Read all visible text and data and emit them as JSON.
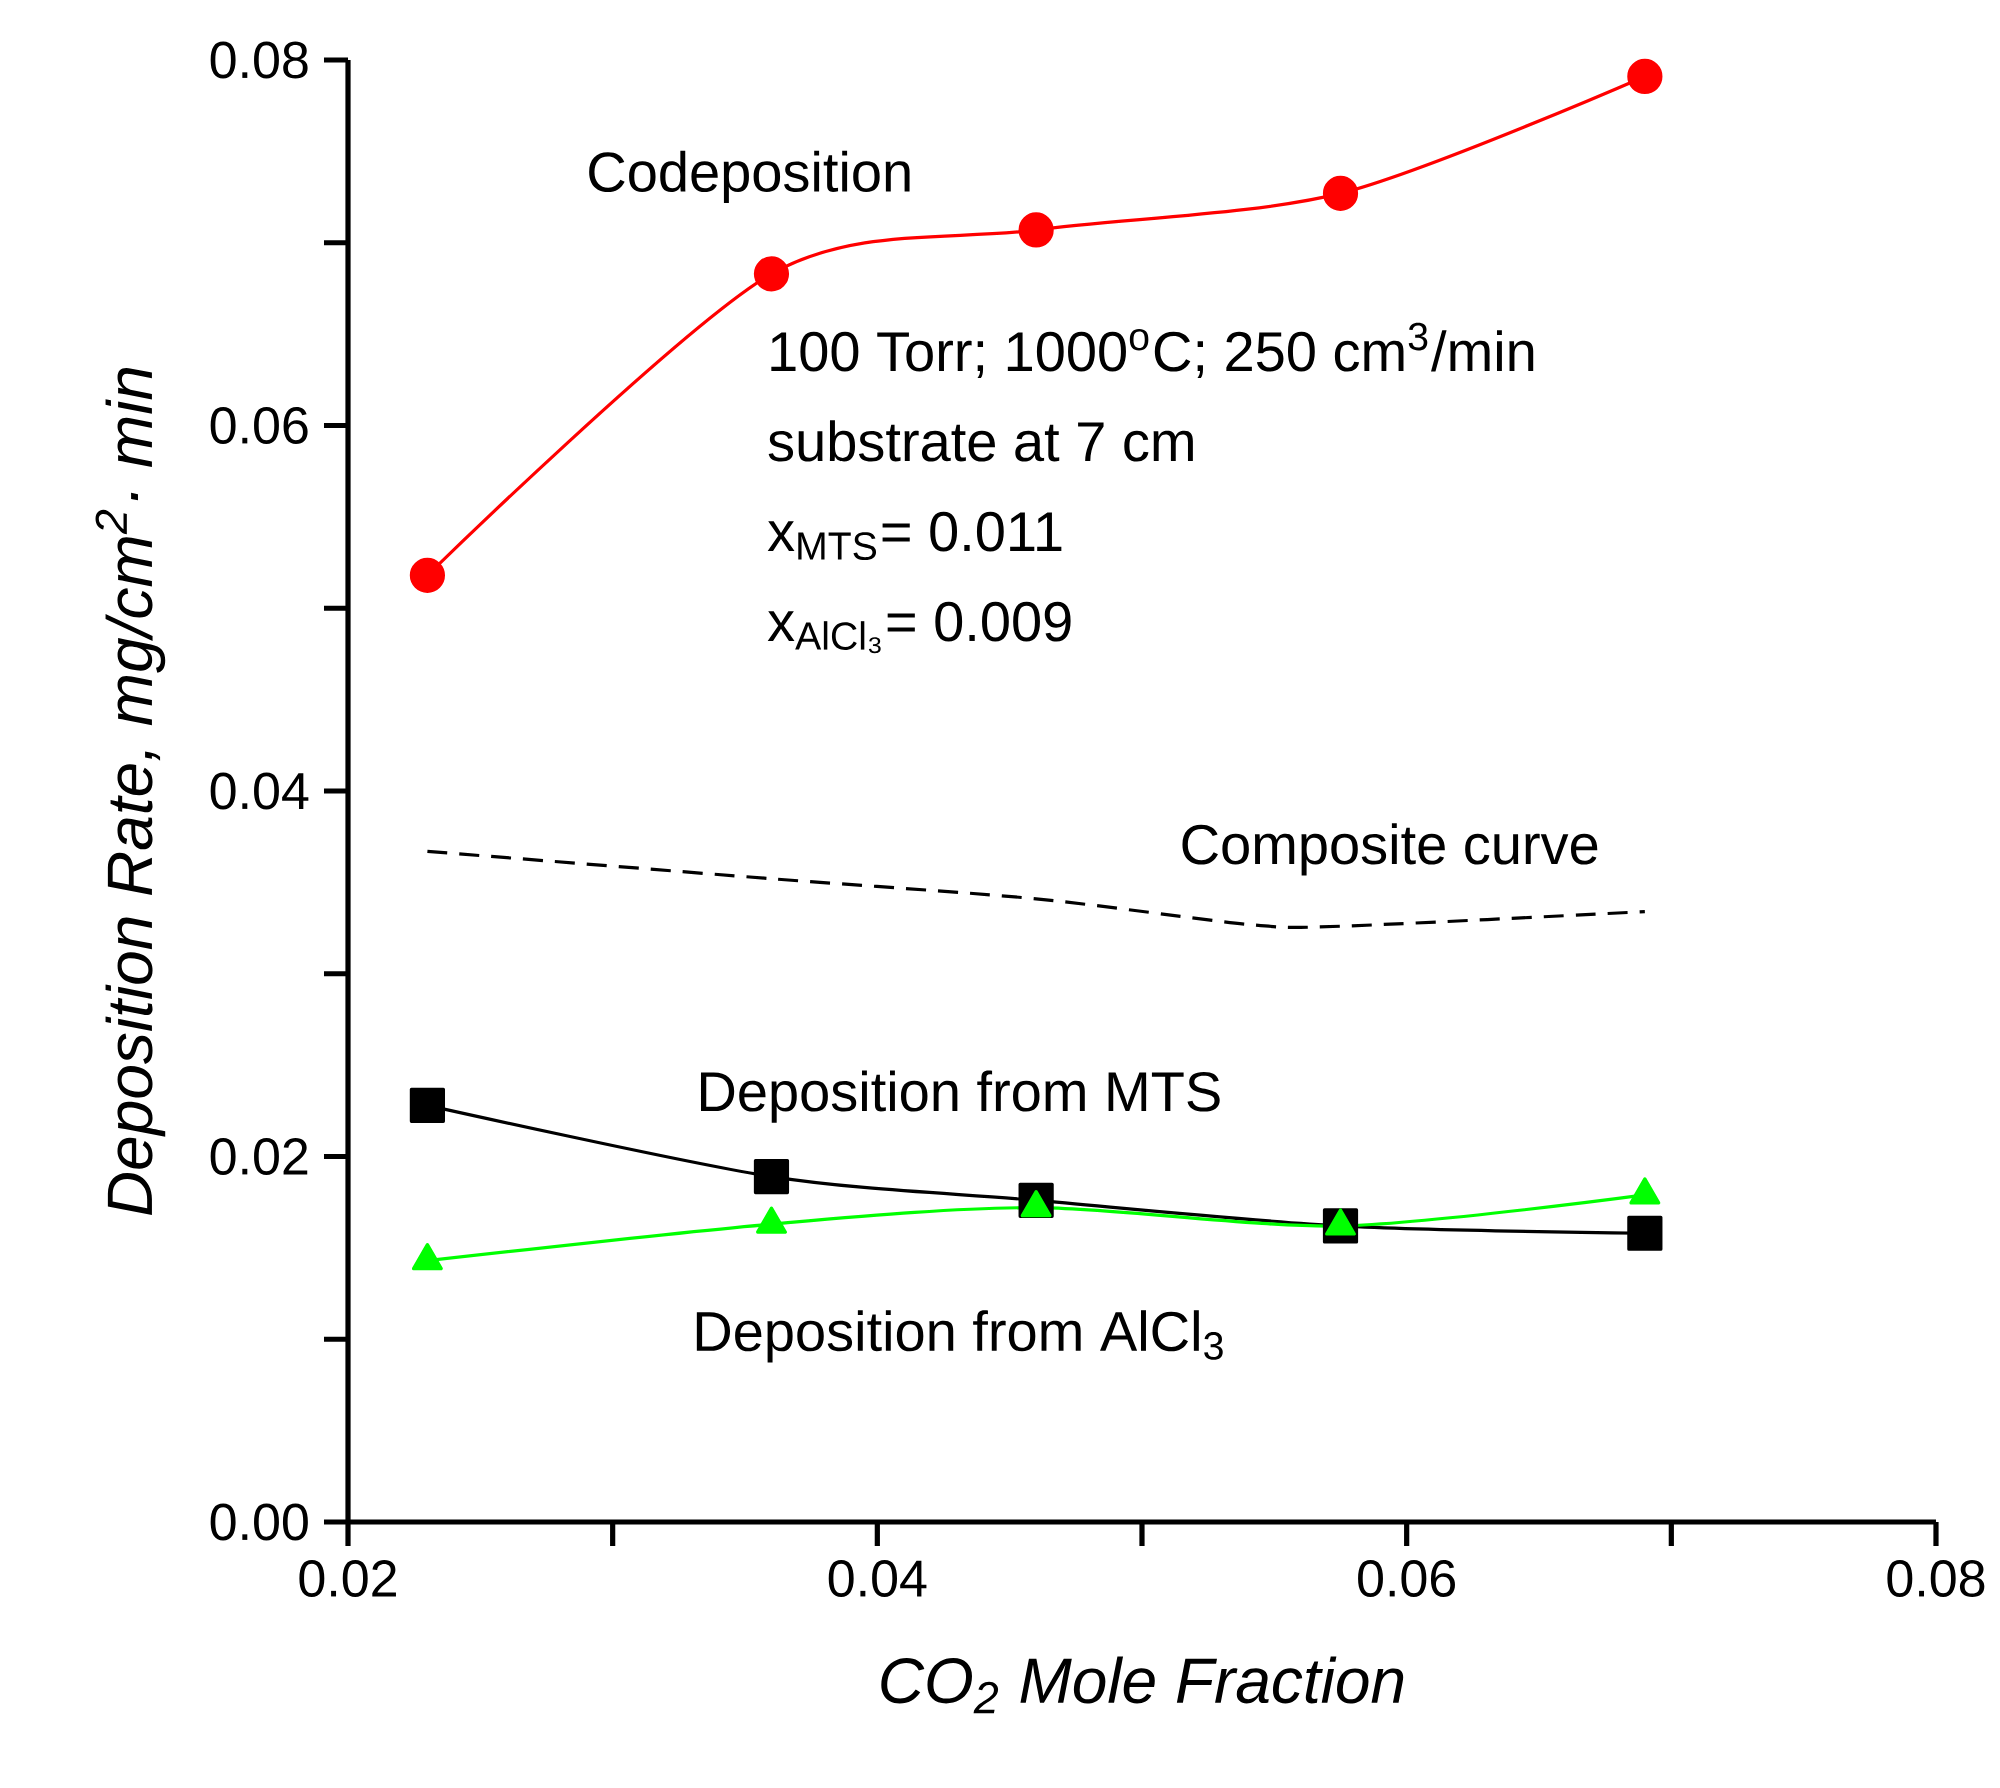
{
  "chart_data": {
    "type": "line",
    "xlabel": "*CO$_{2}$ Mole Fraction*",
    "ylabel": "*Deposition Rate, mg/cm$^{2}$· min*",
    "xlim": [
      0.02,
      0.08
    ],
    "ylim": [
      0,
      0.08
    ],
    "xticks": [
      0.02,
      {
        "value": 0.03,
        "label": null
      },
      0.04,
      {
        "value": 0.05,
        "label": null
      },
      0.06,
      {
        "value": 0.07,
        "label": null
      },
      0.08
    ],
    "yticks": [
      {
        "value": 0,
        "label": "0.00"
      },
      {
        "value": 0.01,
        "label": null
      },
      0.02,
      {
        "value": 0.03,
        "label": null
      },
      0.04,
      {
        "value": 0.05,
        "label": null
      },
      0.06,
      {
        "value": 0.07,
        "label": null
      },
      0.08
    ],
    "annotations": [
      "100 Torr; 1000$^{o}$C; 250 cm$^{3}$/min",
      "substrate at 7 cm",
      "x$_{MTS}$= 0.011",
      "x$_{AlCl₃}$= 0.009"
    ],
    "series": [
      {
        "name": "Codeposition",
        "color": "#ff0000",
        "marker": "circle",
        "line_style": "solid",
        "x": [
          0.023,
          0.036,
          0.046,
          0.0575,
          0.069
        ],
        "values": [
          0.0518,
          0.0683,
          0.0707,
          0.0727,
          0.0791
        ]
      },
      {
        "name": "Composite curve",
        "color": "#000000",
        "marker": "none",
        "line_style": "dashed",
        "x": [
          0.023,
          0.036,
          0.046,
          0.054,
          0.0575,
          0.069
        ],
        "values": [
          0.0367,
          0.0352,
          0.0341,
          0.0327,
          0.0326,
          0.0334
        ]
      },
      {
        "name": "Deposition from MTS",
        "color": "#000000",
        "marker": "square",
        "line_style": "solid",
        "x": [
          0.023,
          0.036,
          0.046,
          0.0575,
          0.069
        ],
        "values": [
          0.0228,
          0.0189,
          0.0176,
          0.0162,
          0.0158
        ]
      },
      {
        "name": "Deposition from AlCl$_{3}$",
        "color": "#00ff00",
        "marker": "triangle",
        "line_style": "solid",
        "x": [
          0.023,
          0.036,
          0.046,
          0.0575,
          0.069
        ],
        "values": [
          0.0143,
          0.0163,
          0.0172,
          0.0162,
          0.0179
        ]
      }
    ]
  }
}
